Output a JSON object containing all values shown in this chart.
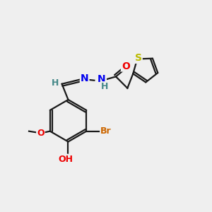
{
  "bg_color": "#efefef",
  "bond_color": "#1a1a1a",
  "atom_colors": {
    "N": "#0000ee",
    "O": "#ee0000",
    "S": "#bbbb00",
    "Br": "#cc6600",
    "C": "#1a1a1a",
    "H": "#448888"
  },
  "font_size": 10,
  "label_font_size": 9,
  "lw": 1.6,
  "ring_r": 1.0,
  "thio_r": 0.62
}
